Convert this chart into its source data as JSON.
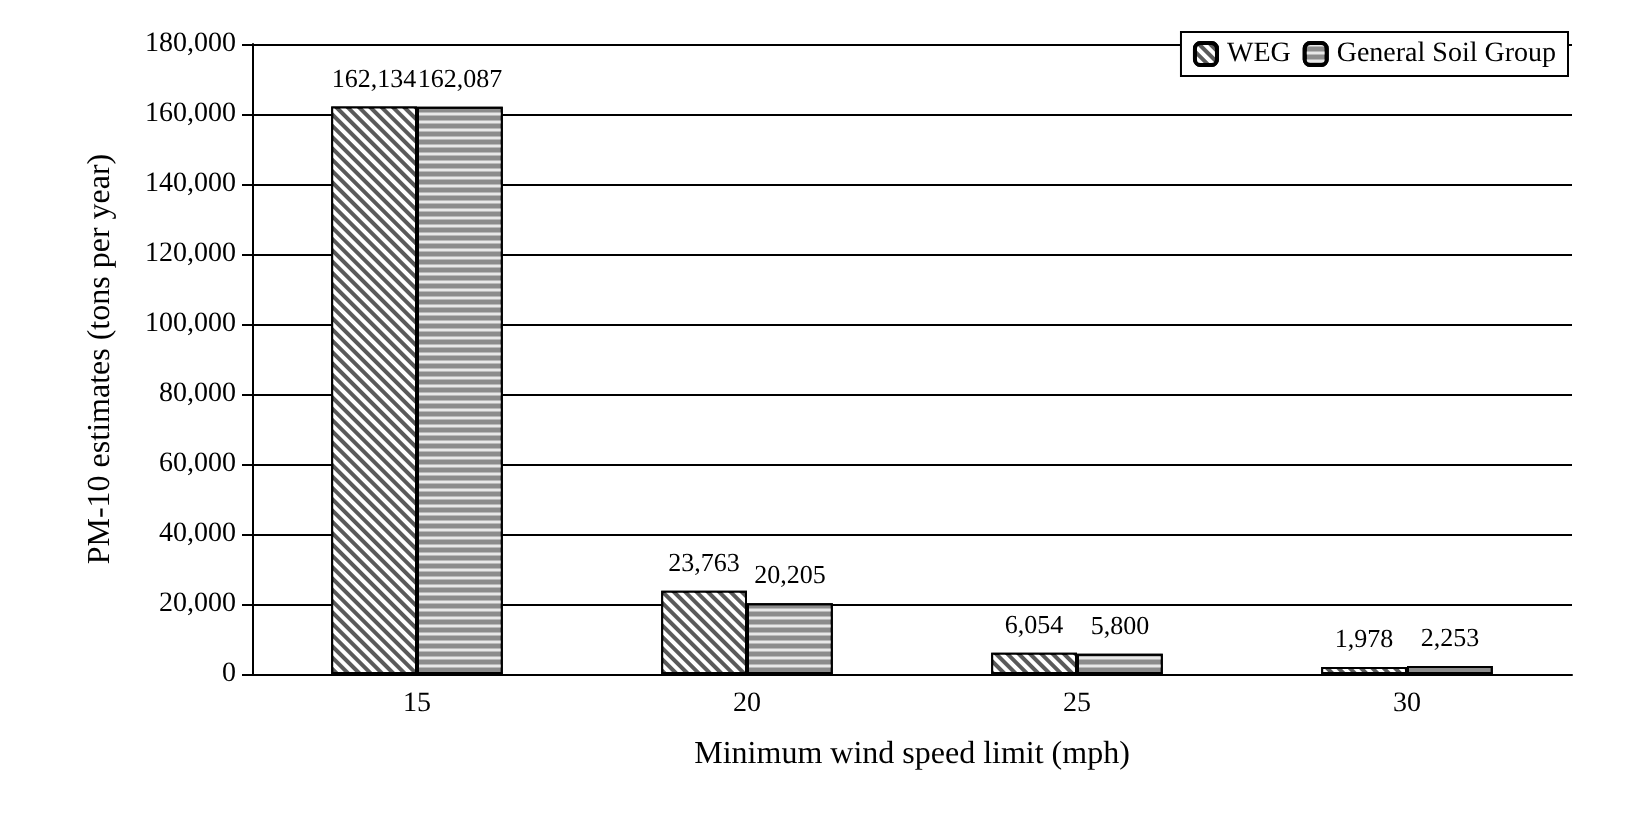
{
  "chart_data": {
    "type": "bar",
    "xlabel": "Minimum wind speed limit (mph)",
    "ylabel": "PM-10 estimates (tons per year)",
    "categories": [
      "15",
      "20",
      "25",
      "30"
    ],
    "series": [
      {
        "name": "WEG",
        "color": "#5a5a5a",
        "values": [
          162134,
          23763,
          6054,
          1978
        ],
        "value_labels": [
          "162,134",
          "23,763",
          "6,054",
          "1,978"
        ]
      },
      {
        "name": "General Soil Group",
        "color": "#8c8c8c",
        "values": [
          162087,
          20205,
          5800,
          2253
        ],
        "value_labels": [
          "162,087",
          "20,205",
          "5,800",
          "2,253"
        ]
      }
    ],
    "ylim": [
      0,
      180000
    ],
    "yticks": [
      0,
      {
        "value": 20000,
        "label": "20,000"
      },
      {
        "value": 40000,
        "label": "40,000"
      },
      {
        "value": 60000,
        "label": "60,000"
      },
      {
        "value": 80000,
        "label": "80,000"
      },
      {
        "value": 100000,
        "label": "100,000"
      },
      {
        "value": 120000,
        "label": "120,000"
      },
      {
        "value": 140000,
        "label": "140,000"
      },
      {
        "value": 160000,
        "label": "160,000"
      },
      {
        "value": 180000,
        "label": "180,000"
      }
    ],
    "grid": "y",
    "legend": "top right"
  }
}
